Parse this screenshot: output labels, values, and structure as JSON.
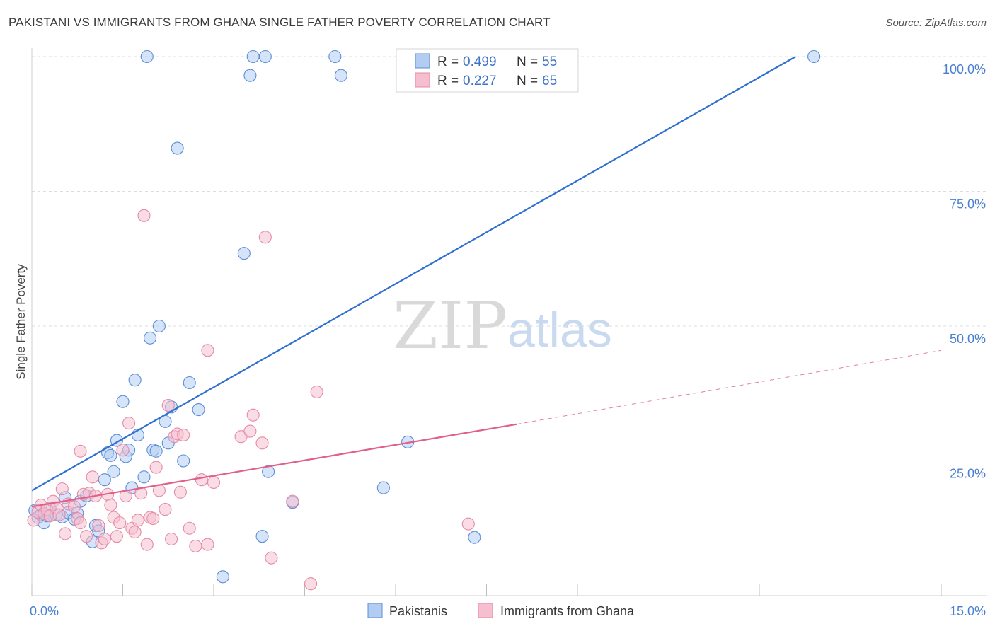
{
  "header": {
    "title": "PAKISTANI VS IMMIGRANTS FROM GHANA SINGLE FATHER POVERTY CORRELATION CHART",
    "source": "Source: ZipAtlas.com"
  },
  "watermark": {
    "zip": "ZIP",
    "atlas": "atlas"
  },
  "colors": {
    "pakistanis_fill": "#b3cdf2",
    "pakistanis_stroke": "#5b8ed6",
    "pakistanis_line": "#2f6fcf",
    "ghana_fill": "#f6bfd0",
    "ghana_stroke": "#e58aa8",
    "ghana_line": "#e0608a",
    "grid": "#dddddd",
    "tick_text": "#4a7fd0"
  },
  "legend": {
    "rows": [
      {
        "r_label": "R =",
        "r_value": "0.499",
        "n_label": "N =",
        "n_value": "55"
      },
      {
        "r_label": "R =",
        "r_value": "0.227",
        "n_label": "N =",
        "n_value": "65"
      }
    ]
  },
  "bottom_legend": [
    "Pakistanis",
    "Immigrants from Ghana"
  ],
  "chart_data": {
    "type": "scatter",
    "title": "PAKISTANI VS IMMIGRANTS FROM GHANA SINGLE FATHER POVERTY CORRELATION CHART",
    "xlabel": "",
    "ylabel": "Single Father Poverty",
    "xlim": [
      0,
      15
    ],
    "ylim": [
      0,
      102
    ],
    "x_tick_labels": [
      "0.0%",
      "15.0%"
    ],
    "y_ticks": [
      25,
      50,
      75,
      100
    ],
    "y_tick_labels": [
      "25.0%",
      "50.0%",
      "75.0%",
      "100.0%"
    ],
    "grid": true,
    "legend_position": "top-center",
    "series": [
      {
        "name": "Pakistanis",
        "r": 0.499,
        "n": 55,
        "trend": {
          "x": [
            0,
            12.6
          ],
          "y": [
            19.5,
            100
          ]
        },
        "points": [
          [
            0.05,
            15.8
          ],
          [
            0.1,
            14.5
          ],
          [
            0.15,
            15.0
          ],
          [
            0.2,
            13.5
          ],
          [
            0.25,
            14.8
          ],
          [
            0.3,
            16.2
          ],
          [
            0.4,
            15.0
          ],
          [
            0.5,
            14.6
          ],
          [
            0.55,
            18.2
          ],
          [
            0.6,
            15.4
          ],
          [
            0.7,
            14.2
          ],
          [
            0.75,
            15.3
          ],
          [
            0.8,
            17.5
          ],
          [
            0.9,
            18.5
          ],
          [
            1.0,
            10.0
          ],
          [
            1.05,
            13.0
          ],
          [
            1.1,
            12.0
          ],
          [
            1.2,
            21.5
          ],
          [
            1.25,
            26.5
          ],
          [
            1.3,
            26.0
          ],
          [
            1.35,
            23.0
          ],
          [
            1.4,
            28.8
          ],
          [
            1.5,
            36.0
          ],
          [
            1.55,
            25.8
          ],
          [
            1.6,
            27.0
          ],
          [
            1.65,
            20.0
          ],
          [
            1.7,
            40.0
          ],
          [
            1.75,
            29.8
          ],
          [
            1.85,
            22.0
          ],
          [
            1.9,
            100
          ],
          [
            1.95,
            47.8
          ],
          [
            2.0,
            27.0
          ],
          [
            2.05,
            26.8
          ],
          [
            2.1,
            50.0
          ],
          [
            2.2,
            32.3
          ],
          [
            2.25,
            28.3
          ],
          [
            2.3,
            35.0
          ],
          [
            2.4,
            83.0
          ],
          [
            2.5,
            25.0
          ],
          [
            2.6,
            39.5
          ],
          [
            2.75,
            34.5
          ],
          [
            3.15,
            3.5
          ],
          [
            3.5,
            63.5
          ],
          [
            3.6,
            96.5
          ],
          [
            3.65,
            100
          ],
          [
            3.8,
            11.0
          ],
          [
            3.85,
            100
          ],
          [
            3.9,
            23.0
          ],
          [
            4.3,
            17.3
          ],
          [
            5.0,
            100
          ],
          [
            5.1,
            96.5
          ],
          [
            5.8,
            20.0
          ],
          [
            6.2,
            28.5
          ],
          [
            7.3,
            10.8
          ],
          [
            12.9,
            100
          ]
        ]
      },
      {
        "name": "Immigrants from Ghana",
        "r": 0.227,
        "n": 65,
        "trend": {
          "x": [
            0,
            8.0
          ],
          "y": [
            16.5,
            31.8
          ]
        },
        "trend_extension": {
          "x": [
            8.0,
            15.0
          ],
          "y": [
            31.8,
            45.5
          ]
        },
        "points": [
          [
            0.03,
            14.0
          ],
          [
            0.1,
            15.5
          ],
          [
            0.15,
            16.8
          ],
          [
            0.2,
            15.2
          ],
          [
            0.25,
            16.0
          ],
          [
            0.3,
            14.8
          ],
          [
            0.35,
            17.5
          ],
          [
            0.4,
            16.3
          ],
          [
            0.45,
            15.0
          ],
          [
            0.5,
            19.8
          ],
          [
            0.55,
            11.5
          ],
          [
            0.6,
            17.0
          ],
          [
            0.7,
            16.5
          ],
          [
            0.75,
            14.3
          ],
          [
            0.8,
            13.5
          ],
          [
            0.85,
            18.8
          ],
          [
            0.8,
            26.8
          ],
          [
            0.9,
            11.0
          ],
          [
            0.95,
            19.0
          ],
          [
            1.0,
            22.0
          ],
          [
            1.05,
            18.5
          ],
          [
            1.1,
            13.0
          ],
          [
            1.15,
            9.8
          ],
          [
            1.2,
            10.5
          ],
          [
            1.25,
            18.8
          ],
          [
            1.3,
            16.8
          ],
          [
            1.35,
            14.5
          ],
          [
            1.4,
            11.0
          ],
          [
            1.45,
            13.5
          ],
          [
            1.5,
            27.0
          ],
          [
            1.55,
            18.5
          ],
          [
            1.6,
            32.0
          ],
          [
            1.65,
            12.5
          ],
          [
            1.7,
            11.8
          ],
          [
            1.75,
            14.0
          ],
          [
            1.8,
            19.0
          ],
          [
            1.85,
            70.5
          ],
          [
            1.9,
            9.5
          ],
          [
            1.95,
            14.5
          ],
          [
            2.0,
            14.3
          ],
          [
            2.05,
            23.8
          ],
          [
            2.1,
            19.5
          ],
          [
            2.2,
            16.0
          ],
          [
            2.25,
            35.3
          ],
          [
            2.3,
            10.5
          ],
          [
            2.35,
            29.5
          ],
          [
            2.4,
            30.0
          ],
          [
            2.45,
            19.2
          ],
          [
            2.5,
            29.8
          ],
          [
            2.6,
            12.5
          ],
          [
            2.7,
            9.2
          ],
          [
            2.8,
            21.5
          ],
          [
            2.9,
            9.5
          ],
          [
            2.9,
            45.5
          ],
          [
            3.0,
            21.0
          ],
          [
            3.45,
            29.5
          ],
          [
            3.6,
            30.5
          ],
          [
            3.65,
            33.5
          ],
          [
            3.8,
            28.3
          ],
          [
            3.85,
            66.5
          ],
          [
            3.95,
            7.0
          ],
          [
            4.3,
            17.5
          ],
          [
            4.6,
            2.2
          ],
          [
            4.7,
            37.8
          ],
          [
            7.2,
            13.3
          ]
        ]
      }
    ]
  }
}
